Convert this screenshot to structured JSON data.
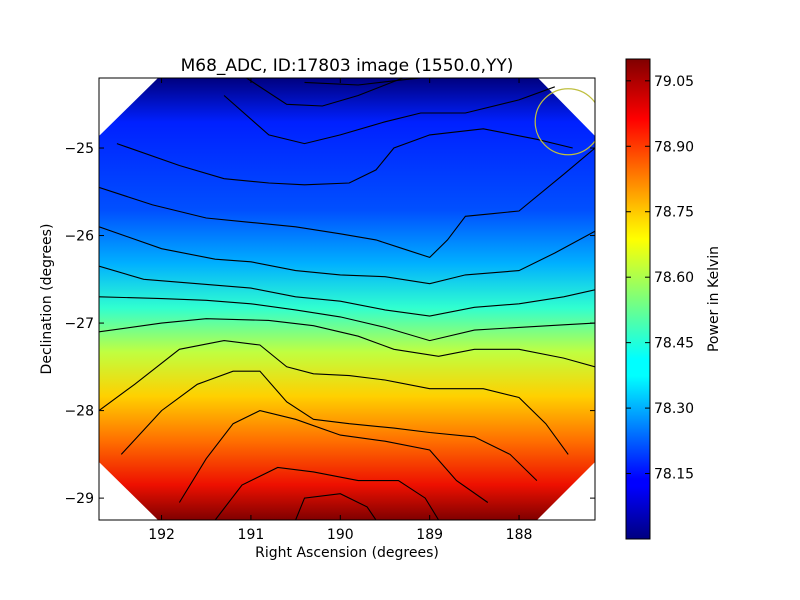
{
  "chart_data": {
    "type": "heatmap",
    "title": "M68_ADC, ID:17803 image (1550.0,YY)",
    "xlabel": "Right Ascension (degrees)",
    "ylabel": "Declination (degrees)",
    "colorbar_label": "Power in Kelvin",
    "xlim": [
      192.7,
      187.15
    ],
    "ylim": [
      -29.25,
      -24.2
    ],
    "x_ticks": [
      {
        "value": 192,
        "label": "192"
      },
      {
        "value": 191,
        "label": "191"
      },
      {
        "value": 190,
        "label": "190"
      },
      {
        "value": 189,
        "label": "189"
      },
      {
        "value": 188,
        "label": "188"
      }
    ],
    "y_ticks": [
      {
        "value": -25,
        "label": "−25"
      },
      {
        "value": -26,
        "label": "−26"
      },
      {
        "value": -27,
        "label": "−27"
      },
      {
        "value": -28,
        "label": "−28"
      },
      {
        "value": -29,
        "label": "−29"
      }
    ],
    "colorbar_range": [
      78.0,
      79.1
    ],
    "colorbar_ticks": [
      {
        "value": 78.15,
        "label": "78.15"
      },
      {
        "value": 78.3,
        "label": "78.30"
      },
      {
        "value": 78.45,
        "label": "78.45"
      },
      {
        "value": 78.6,
        "label": "78.60"
      },
      {
        "value": 78.75,
        "label": "78.75"
      },
      {
        "value": 78.9,
        "label": "78.90"
      },
      {
        "value": 79.05,
        "label": "79.05"
      }
    ],
    "colormap": "jet",
    "beam_circle": {
      "ra": 187.45,
      "dec": -24.7,
      "color": "#bfbf3f"
    },
    "contour_levels_count": 13,
    "contours": [
      [
        [
          190.4,
          -24.25
        ],
        [
          189.8,
          -24.28
        ],
        [
          189.3,
          -24.22
        ],
        [
          189.1,
          -24.2
        ]
      ],
      [
        [
          191.05,
          -24.2
        ],
        [
          190.6,
          -24.5
        ],
        [
          190.2,
          -24.52
        ],
        [
          189.8,
          -24.4
        ],
        [
          189.3,
          -24.2
        ]
      ],
      [
        [
          191.3,
          -24.4
        ],
        [
          190.8,
          -24.85
        ],
        [
          190.4,
          -24.95
        ],
        [
          190.0,
          -24.85
        ],
        [
          189.5,
          -24.7
        ],
        [
          189.1,
          -24.6
        ],
        [
          188.6,
          -24.6
        ],
        [
          188.0,
          -24.45
        ],
        [
          187.6,
          -24.3
        ]
      ],
      [
        [
          192.5,
          -24.95
        ],
        [
          191.8,
          -25.2
        ],
        [
          191.3,
          -25.35
        ],
        [
          190.8,
          -25.4
        ],
        [
          190.4,
          -25.42
        ],
        [
          189.9,
          -25.4
        ],
        [
          189.6,
          -25.25
        ],
        [
          189.4,
          -25.0
        ],
        [
          189.0,
          -24.85
        ],
        [
          188.4,
          -24.78
        ],
        [
          187.8,
          -24.9
        ],
        [
          187.4,
          -25.0
        ]
      ],
      [
        [
          192.7,
          -25.45
        ],
        [
          192.1,
          -25.65
        ],
        [
          191.5,
          -25.8
        ],
        [
          191.0,
          -25.85
        ],
        [
          190.5,
          -25.9
        ],
        [
          190.0,
          -25.98
        ],
        [
          189.6,
          -26.05
        ],
        [
          189.3,
          -26.15
        ],
        [
          189.0,
          -26.25
        ],
        [
          188.8,
          -26.05
        ],
        [
          188.6,
          -25.78
        ],
        [
          188.3,
          -25.75
        ],
        [
          188.0,
          -25.72
        ],
        [
          187.5,
          -25.3
        ],
        [
          187.15,
          -25.0
        ]
      ],
      [
        [
          192.7,
          -25.9
        ],
        [
          192.0,
          -26.15
        ],
        [
          191.4,
          -26.27
        ],
        [
          191.0,
          -26.3
        ],
        [
          190.5,
          -26.4
        ],
        [
          190.0,
          -26.45
        ],
        [
          189.5,
          -26.47
        ],
        [
          189.0,
          -26.55
        ],
        [
          188.6,
          -26.45
        ],
        [
          188.0,
          -26.4
        ],
        [
          187.6,
          -26.2
        ],
        [
          187.15,
          -25.95
        ]
      ],
      [
        [
          192.7,
          -26.35
        ],
        [
          192.2,
          -26.5
        ],
        [
          191.6,
          -26.55
        ],
        [
          191.0,
          -26.6
        ],
        [
          190.5,
          -26.7
        ],
        [
          190.0,
          -26.75
        ],
        [
          189.5,
          -26.85
        ],
        [
          189.0,
          -26.92
        ],
        [
          188.5,
          -26.82
        ],
        [
          188.0,
          -26.78
        ],
        [
          187.5,
          -26.7
        ],
        [
          187.15,
          -26.62
        ]
      ],
      [
        [
          192.7,
          -26.7
        ],
        [
          192.0,
          -26.72
        ],
        [
          191.5,
          -26.74
        ],
        [
          191.0,
          -26.78
        ],
        [
          190.5,
          -26.85
        ],
        [
          190.0,
          -26.93
        ],
        [
          189.5,
          -27.05
        ],
        [
          189.0,
          -27.2
        ],
        [
          188.5,
          -27.08
        ],
        [
          188.0,
          -27.05
        ],
        [
          187.5,
          -27.02
        ],
        [
          187.15,
          -27.0
        ]
      ],
      [
        [
          192.7,
          -27.1
        ],
        [
          192.0,
          -27.0
        ],
        [
          191.5,
          -26.95
        ],
        [
          190.8,
          -26.97
        ],
        [
          190.3,
          -27.03
        ],
        [
          189.8,
          -27.15
        ],
        [
          189.4,
          -27.3
        ],
        [
          188.9,
          -27.38
        ],
        [
          188.5,
          -27.3
        ],
        [
          188.0,
          -27.3
        ],
        [
          187.5,
          -27.4
        ],
        [
          187.15,
          -27.5
        ]
      ],
      [
        [
          192.7,
          -28.0
        ],
        [
          192.3,
          -27.7
        ],
        [
          191.8,
          -27.3
        ],
        [
          191.3,
          -27.2
        ],
        [
          190.9,
          -27.25
        ],
        [
          190.6,
          -27.5
        ],
        [
          190.3,
          -27.58
        ],
        [
          189.9,
          -27.6
        ],
        [
          189.5,
          -27.65
        ],
        [
          189.0,
          -27.75
        ],
        [
          188.4,
          -27.75
        ],
        [
          188.0,
          -27.85
        ],
        [
          187.7,
          -28.15
        ],
        [
          187.45,
          -28.5
        ]
      ],
      [
        [
          192.45,
          -28.5
        ],
        [
          192.0,
          -28.0
        ],
        [
          191.6,
          -27.7
        ],
        [
          191.2,
          -27.55
        ],
        [
          190.9,
          -27.55
        ],
        [
          190.6,
          -27.9
        ],
        [
          190.3,
          -28.1
        ],
        [
          189.9,
          -28.15
        ],
        [
          189.4,
          -28.2
        ],
        [
          189.0,
          -28.25
        ],
        [
          188.5,
          -28.3
        ],
        [
          188.1,
          -28.5
        ],
        [
          187.8,
          -28.8
        ]
      ],
      [
        [
          191.8,
          -29.05
        ],
        [
          191.5,
          -28.55
        ],
        [
          191.2,
          -28.15
        ],
        [
          190.9,
          -28.0
        ],
        [
          190.5,
          -28.1
        ],
        [
          190.0,
          -28.28
        ],
        [
          189.5,
          -28.35
        ],
        [
          189.0,
          -28.45
        ],
        [
          188.7,
          -28.8
        ],
        [
          188.35,
          -29.05
        ]
      ],
      [
        [
          191.4,
          -29.25
        ],
        [
          191.1,
          -28.85
        ],
        [
          190.7,
          -28.65
        ],
        [
          190.3,
          -28.7
        ],
        [
          189.8,
          -28.8
        ],
        [
          189.35,
          -28.8
        ],
        [
          189.05,
          -29.0
        ],
        [
          188.9,
          -29.25
        ]
      ],
      [
        [
          190.5,
          -29.25
        ],
        [
          190.4,
          -29.0
        ],
        [
          190.0,
          -28.95
        ],
        [
          189.7,
          -29.1
        ],
        [
          189.6,
          -29.25
        ]
      ]
    ]
  }
}
